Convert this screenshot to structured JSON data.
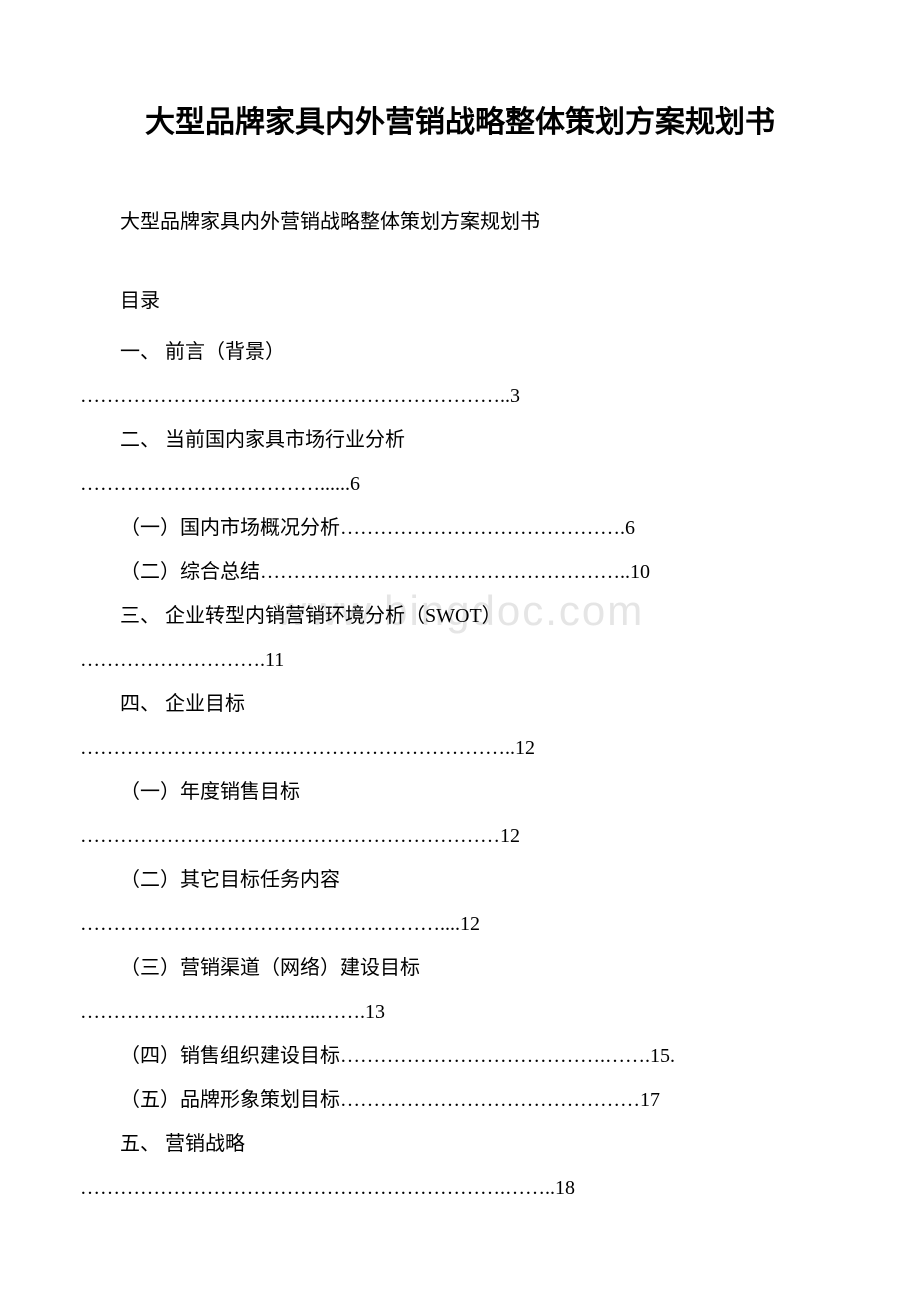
{
  "document": {
    "title": "大型品牌家具内外营销战略整体策划方案规划书",
    "subtitle": "大型品牌家具内外营销战略整体策划方案规划书",
    "toc_label": "目录",
    "watermark": "www.bingdoc.com",
    "title_fontsize": 30,
    "body_fontsize": 20,
    "text_color": "#000000",
    "background_color": "#ffffff",
    "watermark_color": "rgba(180,180,180,0.35)"
  },
  "toc": {
    "entries": [
      {
        "label_line": "一、 前言（背景）",
        "dots_line": "………………………………………………………..3"
      },
      {
        "label_line": "二、 当前国内家具市场行业分析",
        "dots_line": "………………………………......6"
      },
      {
        "label_line": "（一）国内市场概况分析…………………………………….6",
        "dots_line": ""
      },
      {
        "label_line": "（二）综合总结………………………………………………..10",
        "dots_line": ""
      },
      {
        "label_line": "三、 企业转型内销营销环境分析（SWOT）",
        "dots_line": "……………………….11"
      },
      {
        "label_line": "四、 企业目标",
        "dots_line": "………………………….……………………………..12"
      },
      {
        "label_line": "（一）年度销售目标",
        "dots_line": "………………………………………………………12"
      },
      {
        "label_line": "（二）其它目标任务内容",
        "dots_line": "………………………………………………....12"
      },
      {
        "label_line": "（三）营销渠道（网络）建设目标",
        "dots_line": "…………………………..…..…….13"
      },
      {
        "label_line": "（四）销售组织建设目标………………………………….…….15.",
        "dots_line": ""
      },
      {
        "label_line": "（五）品牌形象策划目标………………………………………17",
        "dots_line": ""
      },
      {
        "label_line": "五、 营销战略",
        "dots_line": "……………………………………………………….……..18"
      }
    ]
  }
}
